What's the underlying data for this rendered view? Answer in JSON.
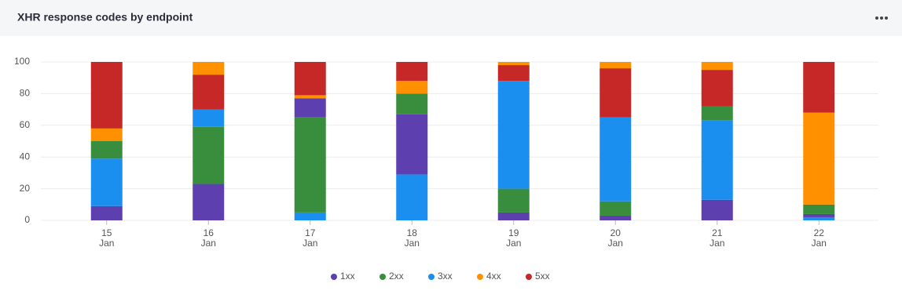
{
  "chart_data": {
    "type": "stacked_bar",
    "title": "XHR response codes by endpoint",
    "x_day": [
      "15",
      "16",
      "17",
      "18",
      "19",
      "20",
      "21",
      "22"
    ],
    "x_month": [
      "Jan",
      "Jan",
      "Jan",
      "Jan",
      "Jan",
      "Jan",
      "Jan",
      "Jan"
    ],
    "series": [
      {
        "name": "1xx",
        "color": "#5e3fb0",
        "values": [
          9,
          23,
          12,
          38,
          5,
          3,
          13,
          2
        ]
      },
      {
        "name": "2xx",
        "color": "#388e3c",
        "values": [
          11,
          36,
          60,
          13,
          15,
          9,
          9,
          6
        ]
      },
      {
        "name": "3xx",
        "color": "#1a8ff0",
        "values": [
          30,
          11,
          5,
          29,
          68,
          53,
          50,
          2
        ]
      },
      {
        "name": "4xx",
        "color": "#ff9100",
        "values": [
          8,
          8,
          2,
          8,
          2,
          4,
          5,
          58
        ]
      },
      {
        "name": "5xx",
        "color": "#c62828",
        "values": [
          42,
          22,
          21,
          12,
          10,
          31,
          23,
          32
        ]
      }
    ],
    "ylim": [
      0,
      100
    ],
    "yticks": [
      0,
      20,
      40,
      60,
      80,
      100
    ],
    "grid": true
  }
}
